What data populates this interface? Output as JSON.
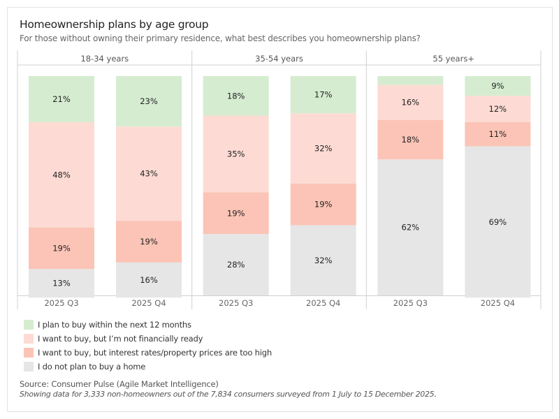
{
  "chart_data": {
    "type": "bar",
    "stacked": true,
    "title": "Homeownership plans by age group",
    "subtitle": "For those without owning their primary residence, what best describes you homeownership plans?",
    "panels": [
      "18-34 years",
      "35-54 years",
      "55 years+"
    ],
    "categories": [
      "2025 Q3",
      "2025 Q4"
    ],
    "ylim": [
      0,
      100
    ],
    "series": [
      {
        "name": "I plan to buy within the next 12 months",
        "color": "#d5ecd0",
        "values": [
          [
            21,
            23
          ],
          [
            18,
            17
          ],
          [
            4,
            9
          ]
        ],
        "labels": [
          [
            "21%",
            "23%"
          ],
          [
            "18%",
            "17%"
          ],
          [
            "",
            "9%"
          ]
        ]
      },
      {
        "name": "I want to buy, but I’m not financially ready",
        "color": "#fddbd4",
        "values": [
          [
            48,
            43
          ],
          [
            35,
            32
          ],
          [
            16,
            12
          ]
        ],
        "labels": [
          [
            "48%",
            "43%"
          ],
          [
            "35%",
            "32%"
          ],
          [
            "16%",
            "12%"
          ]
        ]
      },
      {
        "name": "I want to buy, but interest rates/property prices are too high",
        "color": "#fbc4b6",
        "values": [
          [
            19,
            19
          ],
          [
            19,
            19
          ],
          [
            18,
            11
          ]
        ],
        "labels": [
          [
            "19%",
            "19%"
          ],
          [
            "19%",
            "19%"
          ],
          [
            "18%",
            "11%"
          ]
        ]
      },
      {
        "name": "I do not plan to buy a home",
        "color": "#e6e6e6",
        "values": [
          [
            13,
            16
          ],
          [
            28,
            32
          ],
          [
            62,
            69
          ]
        ],
        "labels": [
          [
            "13%",
            "16%"
          ],
          [
            "28%",
            "32%"
          ],
          [
            "62%",
            "69%"
          ]
        ]
      }
    ],
    "legend_position": "bottom-left",
    "grid": false
  },
  "footer": {
    "source": "Source: Consumer Pulse (Agile Market Intelligence)",
    "note": "Showing data for 3,333 non-homeowners out of the 7,834 consumers surveyed from 1 July to 15 December 2025."
  }
}
